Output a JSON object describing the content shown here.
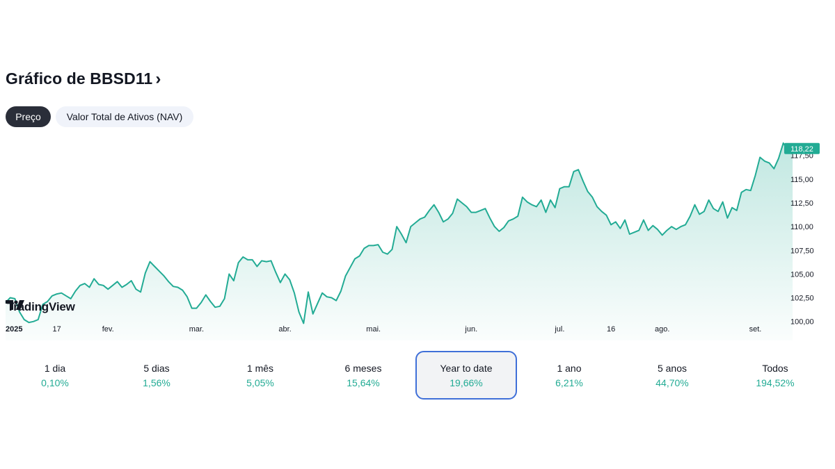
{
  "header": {
    "title": "Gráfico de BBSD11",
    "chevron": "›"
  },
  "tabs": [
    {
      "label": "Preço",
      "active": true
    },
    {
      "label": "Valor Total de Ativos (NAV)",
      "active": false
    }
  ],
  "branding": {
    "logo_text": "TradingView"
  },
  "colors": {
    "line": "#22ab94",
    "price_badge": "#22ab94",
    "positive": "#22ab94",
    "selected_border": "#2962ff"
  },
  "chart_data": {
    "type": "area",
    "last_price_label": "118,22",
    "yticks": [
      {
        "value": 117.5,
        "label": "117,50"
      },
      {
        "value": 115.0,
        "label": "115,00"
      },
      {
        "value": 112.5,
        "label": "112,50"
      },
      {
        "value": 110.0,
        "label": "110,00"
      },
      {
        "value": 107.5,
        "label": "107,50"
      },
      {
        "value": 105.0,
        "label": "105,00"
      },
      {
        "value": 102.5,
        "label": "102,50"
      },
      {
        "value": 100.0,
        "label": "100,00"
      }
    ],
    "ylim": [
      98.0,
      119.6
    ],
    "xlim": [
      0,
      166
    ],
    "xticks": [
      {
        "x": 2,
        "label": "2025",
        "bold": true
      },
      {
        "x": 11,
        "label": "17",
        "bold": false
      },
      {
        "x": 22,
        "label": "fev.",
        "bold": false
      },
      {
        "x": 41,
        "label": "mar.",
        "bold": false
      },
      {
        "x": 60,
        "label": "abr.",
        "bold": false
      },
      {
        "x": 79,
        "label": "mai.",
        "bold": false
      },
      {
        "x": 100,
        "label": "jun.",
        "bold": false
      },
      {
        "x": 119,
        "label": "jul.",
        "bold": false
      },
      {
        "x": 130,
        "label": "16",
        "bold": false
      },
      {
        "x": 141,
        "label": "ago.",
        "bold": false
      },
      {
        "x": 161,
        "label": "set.",
        "bold": false
      }
    ],
    "series": [
      {
        "values": [
          102.0,
          102.5,
          102.4,
          101.0,
          100.2,
          99.9,
          100.0,
          100.2,
          101.8,
          102.1,
          102.7,
          102.9,
          103.0,
          102.7,
          102.4,
          103.2,
          103.8,
          104.0,
          103.6,
          104.5,
          103.9,
          103.8,
          103.4,
          103.8,
          104.2,
          103.6,
          103.9,
          104.3,
          103.4,
          103.1,
          105.1,
          106.3,
          105.8,
          105.3,
          104.8,
          104.2,
          103.7,
          103.6,
          103.3,
          102.6,
          101.4,
          101.4,
          102.0,
          102.8,
          102.1,
          101.5,
          101.6,
          102.4,
          105.0,
          104.3,
          106.2,
          106.8,
          106.5,
          106.5,
          105.8,
          106.4,
          106.3,
          106.4,
          105.2,
          104.1,
          105.0,
          104.4,
          103.0,
          101.0,
          99.8,
          103.1,
          100.8,
          101.9,
          103.0,
          102.6,
          102.5,
          102.2,
          103.2,
          104.8,
          105.7,
          106.6,
          106.9,
          107.7,
          108.0,
          108.0,
          108.1,
          107.3,
          107.1,
          107.6,
          110.0,
          109.2,
          108.3,
          110.0,
          110.4,
          110.8,
          111.0,
          111.7,
          112.3,
          111.5,
          110.5,
          110.8,
          111.4,
          112.9,
          112.5,
          112.1,
          111.5,
          111.5,
          111.7,
          111.9,
          110.9,
          110.0,
          109.5,
          109.9,
          110.6,
          110.8,
          111.1,
          113.1,
          112.6,
          112.3,
          112.1,
          112.8,
          111.5,
          112.8,
          112.0,
          114.0,
          114.2,
          114.2,
          115.8,
          116.0,
          114.8,
          113.7,
          113.1,
          112.1,
          111.6,
          111.2,
          110.2,
          110.5,
          109.8,
          110.7,
          109.2,
          109.4,
          109.6,
          110.7,
          109.6,
          110.1,
          109.7,
          109.1,
          109.6,
          110.0,
          109.7,
          110.0,
          110.2,
          111.1,
          112.3,
          111.3,
          111.6,
          112.8,
          111.9,
          111.6,
          112.6,
          110.9,
          112.0,
          111.7,
          113.6,
          113.9,
          113.8,
          115.4,
          117.3,
          116.9,
          116.7,
          116.1,
          117.2,
          118.8,
          118.0,
          118.22
        ]
      }
    ]
  },
  "periods": [
    {
      "label": "1 dia",
      "value": "0,10%",
      "selected": false
    },
    {
      "label": "5 dias",
      "value": "1,56%",
      "selected": false
    },
    {
      "label": "1 mês",
      "value": "5,05%",
      "selected": false
    },
    {
      "label": "6 meses",
      "value": "15,64%",
      "selected": false
    },
    {
      "label": "Year to date",
      "value": "19,66%",
      "selected": true
    },
    {
      "label": "1 ano",
      "value": "6,21%",
      "selected": false
    },
    {
      "label": "5 anos",
      "value": "44,70%",
      "selected": false
    },
    {
      "label": "Todos",
      "value": "194,52%",
      "selected": false
    }
  ]
}
